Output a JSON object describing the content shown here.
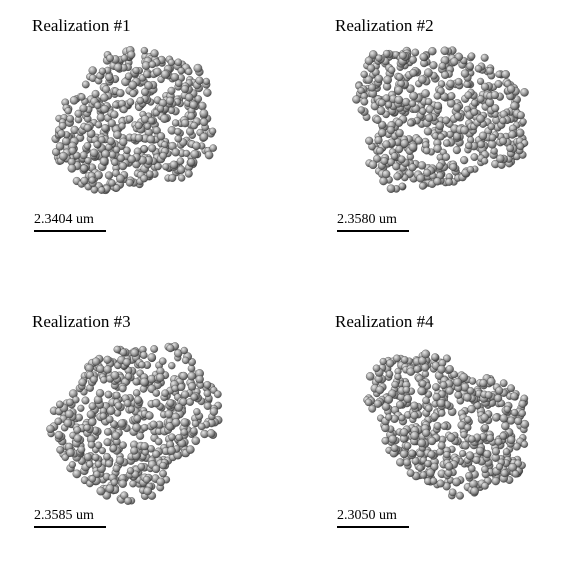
{
  "panels": [
    {
      "title": "Realization #1",
      "scale_label": "2.3404 um"
    },
    {
      "title": "Realization #2",
      "scale_label": "2.3580 um"
    },
    {
      "title": "Realization #3",
      "scale_label": "2.3585 um"
    },
    {
      "title": "Realization #4",
      "scale_label": "2.3050 um"
    }
  ],
  "colors": {
    "sphere": "#9a9a9a",
    "sphere_highlight": "#dcdcdc",
    "sphere_shadow": "#3a3a3a"
  }
}
